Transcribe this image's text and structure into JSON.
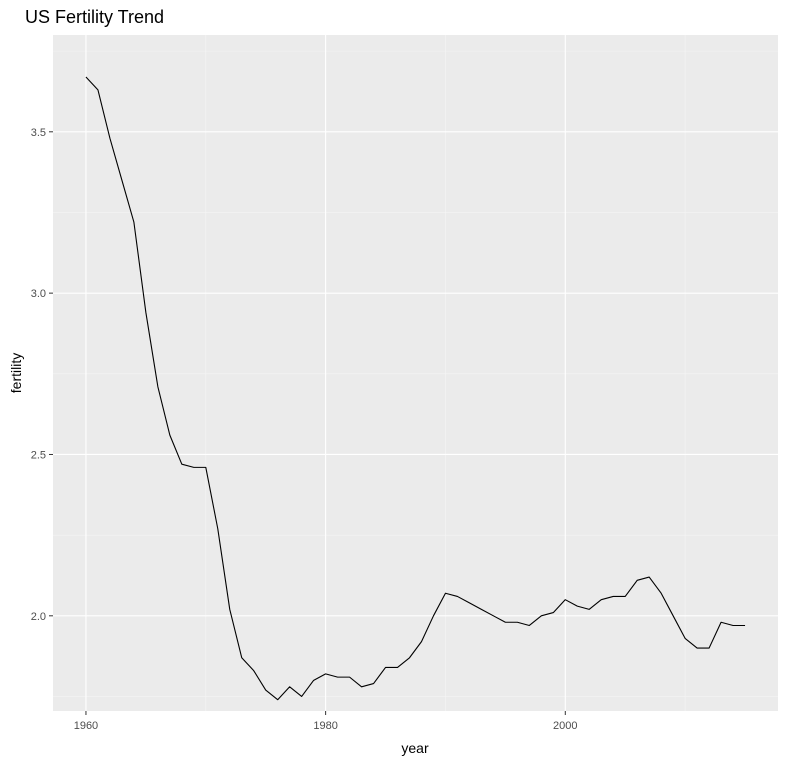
{
  "chart_data": {
    "type": "line",
    "title": "US Fertility Trend",
    "xlabel": "year",
    "ylabel": "fertility",
    "xlim": [
      1956.25,
      1962.75
    ],
    "ylim": [
      1.705,
      3.8
    ],
    "x_ticks": [
      1960,
      1980,
      2000
    ],
    "y_ticks": [
      2.0,
      2.5,
      3.0,
      3.5
    ],
    "x_tick_labels": [
      "1960",
      "1980",
      "2000"
    ],
    "y_tick_labels": [
      "2.0",
      "2.5",
      "3.0",
      "3.5"
    ],
    "grid": true,
    "colors": {
      "panel_background": "#ebebeb",
      "grid_major": "#ffffff",
      "grid_minor": "#f5f5f5",
      "line": "#000000",
      "tick_label": "#4d4d4d",
      "tick_mark": "#333333"
    },
    "series": [
      {
        "x": [
          1960,
          1961,
          1962,
          1963,
          1964,
          1965,
          1966,
          1967,
          1968,
          1969,
          1970,
          1971,
          1972,
          1973,
          1974,
          1975,
          1976,
          1977,
          1978,
          1979,
          1980,
          1981,
          1982,
          1983,
          1984,
          1985,
          1986,
          1987,
          1988,
          1989,
          1990,
          1991,
          1992,
          1993,
          1994,
          1995,
          1996,
          1997,
          1998,
          1999,
          2000,
          2001,
          2002,
          2003,
          2004,
          2005,
          2006,
          2007,
          2008,
          2009,
          2010,
          2011,
          2012,
          2013,
          2014,
          2015
        ],
        "y": [
          3.67,
          3.63,
          3.48,
          3.35,
          3.22,
          2.94,
          2.71,
          2.56,
          2.47,
          2.46,
          2.46,
          2.27,
          2.02,
          1.87,
          1.83,
          1.77,
          1.74,
          1.78,
          1.75,
          1.8,
          1.82,
          1.81,
          1.81,
          1.78,
          1.79,
          1.84,
          1.84,
          1.87,
          1.92,
          2.0,
          2.07,
          2.06,
          2.04,
          2.02,
          2.0,
          1.98,
          1.98,
          1.97,
          2.0,
          2.01,
          2.05,
          2.03,
          2.02,
          2.05,
          2.06,
          2.06,
          2.11,
          2.12,
          2.07,
          2.0,
          1.93,
          1.9,
          1.9,
          1.98,
          1.97,
          1.97
        ]
      }
    ]
  }
}
